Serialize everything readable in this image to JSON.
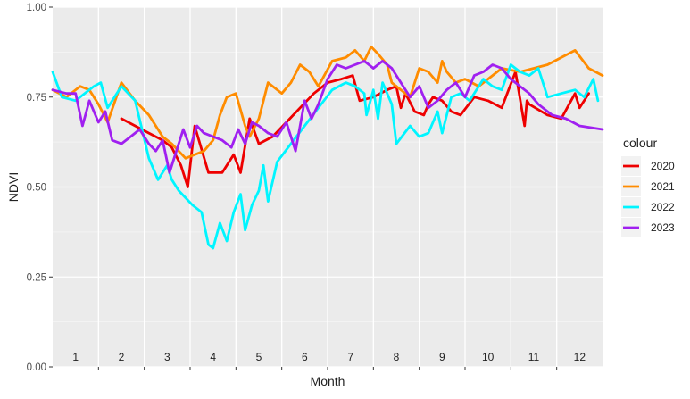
{
  "chart_data": {
    "type": "line",
    "xlabel": "Month",
    "ylabel": "NDVI",
    "ylim": [
      0.0,
      1.0
    ],
    "xlim": [
      0.5,
      12.5
    ],
    "yticks": [
      0.0,
      0.25,
      0.5,
      0.75,
      1.0
    ],
    "ytick_labels": [
      "0.00",
      "0.25",
      "0.50",
      "0.75",
      "1.00"
    ],
    "month_labels": [
      "1",
      "2",
      "3",
      "4",
      "5",
      "6",
      "7",
      "8",
      "9",
      "10",
      "11",
      "12"
    ],
    "grid": true,
    "legend": {
      "title": "colour",
      "placement": "right"
    },
    "series": [
      {
        "name": "2020",
        "color": "#ee0000",
        "x": [
          2.0,
          2.3,
          2.6,
          2.9,
          3.1,
          3.3,
          3.45,
          3.6,
          3.9,
          4.2,
          4.45,
          4.6,
          4.8,
          5.0,
          5.3,
          5.6,
          5.9,
          6.2,
          6.5,
          6.8,
          7.05,
          7.2,
          7.5,
          7.8,
          8.0,
          8.1,
          8.2,
          8.4,
          8.6,
          8.7,
          8.8,
          9.0,
          9.2,
          9.4,
          9.7,
          10.0,
          10.3,
          10.6,
          10.8,
          10.85,
          10.9,
          11.3,
          11.6,
          11.9,
          12.0,
          12.2
        ],
        "y": [
          0.69,
          0.67,
          0.65,
          0.63,
          0.61,
          0.56,
          0.5,
          0.67,
          0.54,
          0.54,
          0.59,
          0.54,
          0.69,
          0.62,
          0.64,
          0.68,
          0.72,
          0.76,
          0.79,
          0.8,
          0.81,
          0.74,
          0.75,
          0.77,
          0.78,
          0.72,
          0.76,
          0.71,
          0.7,
          0.73,
          0.75,
          0.74,
          0.71,
          0.7,
          0.75,
          0.74,
          0.72,
          0.82,
          0.67,
          0.74,
          0.73,
          0.7,
          0.69,
          0.76,
          0.72,
          0.76
        ]
      },
      {
        "name": "2021",
        "color": "#ff8c00",
        "x": [
          0.5,
          0.8,
          1.1,
          1.3,
          1.5,
          1.7,
          2.0,
          2.3,
          2.6,
          2.9,
          3.1,
          3.4,
          3.8,
          4.0,
          4.15,
          4.3,
          4.5,
          4.7,
          4.8,
          5.0,
          5.2,
          5.5,
          5.7,
          5.9,
          6.1,
          6.3,
          6.6,
          6.9,
          7.1,
          7.3,
          7.45,
          7.6,
          7.8,
          7.9,
          8.0,
          8.3,
          8.5,
          8.7,
          8.9,
          9.0,
          9.1,
          9.3,
          9.5,
          9.8,
          10.0,
          10.3,
          10.7,
          11.0,
          11.3,
          11.6,
          11.9,
          12.2,
          12.5
        ],
        "y": [
          0.77,
          0.75,
          0.78,
          0.77,
          0.73,
          0.68,
          0.79,
          0.74,
          0.7,
          0.64,
          0.62,
          0.58,
          0.6,
          0.63,
          0.7,
          0.75,
          0.76,
          0.67,
          0.64,
          0.69,
          0.79,
          0.76,
          0.79,
          0.84,
          0.82,
          0.78,
          0.85,
          0.86,
          0.88,
          0.85,
          0.89,
          0.87,
          0.84,
          0.79,
          0.78,
          0.75,
          0.83,
          0.82,
          0.79,
          0.85,
          0.82,
          0.79,
          0.8,
          0.78,
          0.8,
          0.83,
          0.82,
          0.83,
          0.84,
          0.86,
          0.88,
          0.83,
          0.81
        ]
      },
      {
        "name": "2022",
        "color": "#00f5ff",
        "x": [
          0.5,
          0.7,
          1.0,
          1.2,
          1.4,
          1.55,
          1.7,
          2.0,
          2.3,
          2.6,
          2.8,
          3.0,
          3.1,
          3.25,
          3.4,
          3.55,
          3.75,
          3.9,
          4.0,
          4.15,
          4.3,
          4.45,
          4.6,
          4.7,
          4.85,
          5.0,
          5.1,
          5.2,
          5.4,
          5.7,
          6.0,
          6.3,
          6.6,
          6.9,
          7.1,
          7.3,
          7.35,
          7.5,
          7.6,
          7.7,
          7.9,
          8.0,
          8.3,
          8.5,
          8.7,
          8.9,
          9.0,
          9.2,
          9.4,
          9.6,
          9.9,
          10.1,
          10.3,
          10.5,
          10.7,
          10.9,
          11.1,
          11.3,
          11.6,
          11.9,
          12.1,
          12.3,
          12.4
        ],
        "y": [
          0.82,
          0.75,
          0.74,
          0.76,
          0.78,
          0.79,
          0.72,
          0.78,
          0.74,
          0.58,
          0.52,
          0.56,
          0.52,
          0.49,
          0.47,
          0.45,
          0.43,
          0.34,
          0.33,
          0.4,
          0.35,
          0.43,
          0.48,
          0.38,
          0.45,
          0.49,
          0.56,
          0.46,
          0.57,
          0.62,
          0.67,
          0.72,
          0.77,
          0.79,
          0.78,
          0.76,
          0.7,
          0.77,
          0.69,
          0.79,
          0.73,
          0.62,
          0.67,
          0.64,
          0.65,
          0.71,
          0.65,
          0.75,
          0.76,
          0.74,
          0.8,
          0.78,
          0.77,
          0.84,
          0.82,
          0.81,
          0.83,
          0.75,
          0.76,
          0.77,
          0.75,
          0.8,
          0.74
        ]
      },
      {
        "name": "2023",
        "color": "#a020f0",
        "x": [
          0.5,
          0.8,
          1.0,
          1.15,
          1.3,
          1.5,
          1.65,
          1.8,
          2.0,
          2.2,
          2.4,
          2.6,
          2.75,
          2.9,
          3.05,
          3.2,
          3.35,
          3.5,
          3.65,
          3.8,
          4.0,
          4.2,
          4.4,
          4.55,
          4.7,
          4.85,
          5.0,
          5.2,
          5.4,
          5.6,
          5.8,
          6.0,
          6.15,
          6.3,
          6.5,
          6.7,
          6.9,
          7.1,
          7.3,
          7.5,
          7.7,
          7.9,
          8.1,
          8.3,
          8.5,
          8.7,
          8.9,
          9.1,
          9.3,
          9.5,
          9.7,
          9.9,
          10.1,
          10.3,
          10.5,
          10.7,
          10.9,
          11.1,
          11.4,
          11.7,
          12.0,
          12.5
        ],
        "y": [
          0.77,
          0.76,
          0.76,
          0.67,
          0.74,
          0.68,
          0.71,
          0.63,
          0.62,
          0.64,
          0.66,
          0.62,
          0.6,
          0.63,
          0.54,
          0.6,
          0.66,
          0.61,
          0.67,
          0.65,
          0.64,
          0.63,
          0.61,
          0.66,
          0.62,
          0.68,
          0.67,
          0.65,
          0.64,
          0.68,
          0.6,
          0.74,
          0.69,
          0.73,
          0.8,
          0.84,
          0.83,
          0.84,
          0.85,
          0.83,
          0.85,
          0.83,
          0.79,
          0.75,
          0.78,
          0.72,
          0.74,
          0.77,
          0.79,
          0.75,
          0.81,
          0.82,
          0.84,
          0.83,
          0.8,
          0.78,
          0.76,
          0.73,
          0.7,
          0.69,
          0.67,
          0.66
        ]
      }
    ]
  }
}
